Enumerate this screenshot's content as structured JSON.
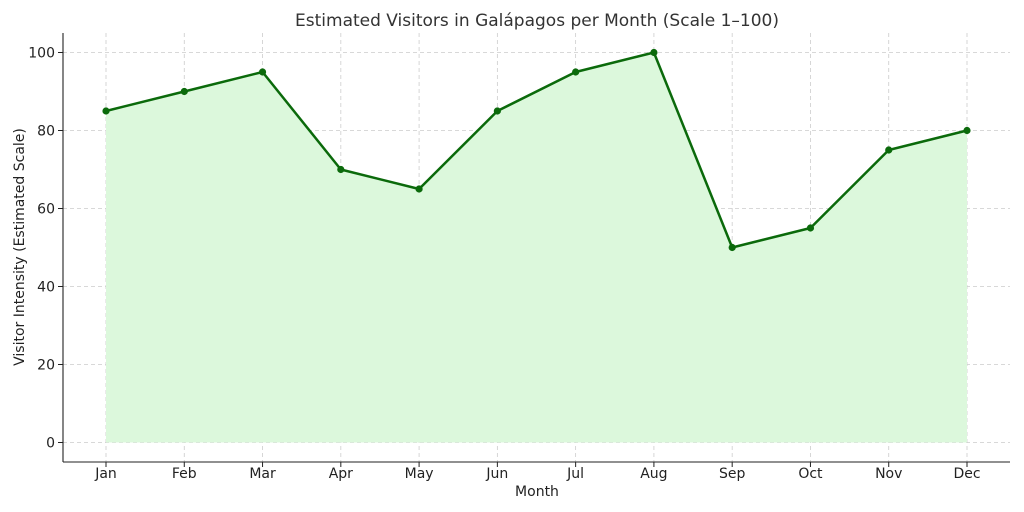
{
  "chart_data": {
    "type": "area",
    "title": "Estimated Visitors in Galápagos per Month (Scale 1–100)",
    "xlabel": "Month",
    "ylabel": "Visitor Intensity (Estimated Scale)",
    "categories": [
      "Jan",
      "Feb",
      "Mar",
      "Apr",
      "May",
      "Jun",
      "Jul",
      "Aug",
      "Sep",
      "Oct",
      "Nov",
      "Dec"
    ],
    "values": [
      85,
      90,
      95,
      70,
      65,
      85,
      95,
      100,
      50,
      55,
      75,
      80
    ],
    "ylim": [
      -5,
      105
    ],
    "yticks": [
      0,
      20,
      40,
      60,
      80,
      100
    ],
    "grid": true,
    "colors": {
      "line": "#0b6a0b",
      "fill": "#dcf8dc",
      "marker": "#0b6a0b"
    }
  }
}
